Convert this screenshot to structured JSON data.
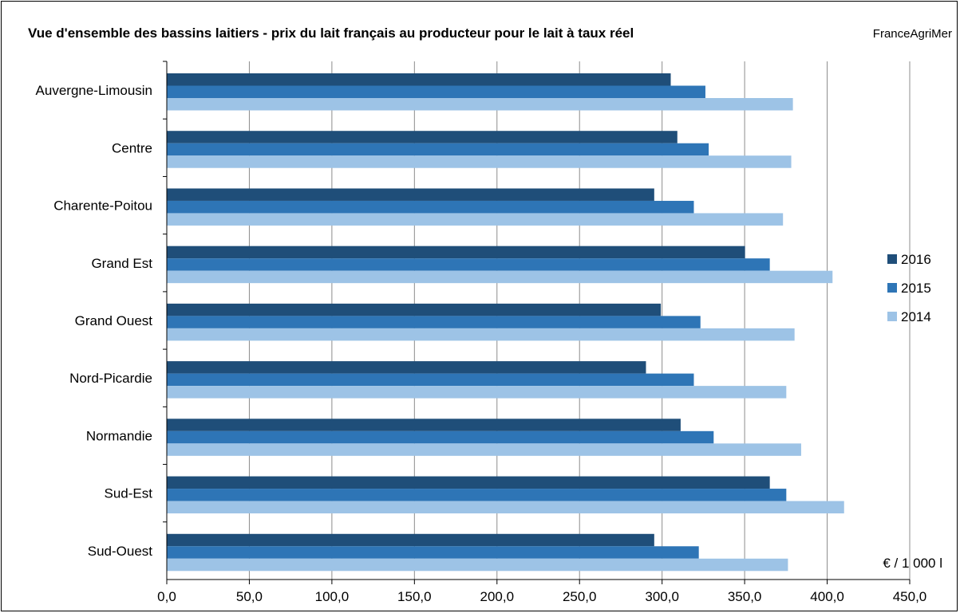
{
  "header": {
    "title": "Vue d'ensemble des bassins laitiers - prix du lait français au producteur pour le lait à taux réel",
    "source": "FranceAgriMer"
  },
  "chart_data": {
    "type": "bar",
    "orientation": "horizontal",
    "title": "Vue d'ensemble des bassins laitiers - prix du lait français au producteur pour le lait à taux réel",
    "unit_label": "€ / 1 000 l",
    "categories": [
      "Auvergne-Limousin",
      "Centre",
      "Charente-Poitou",
      "Grand Est",
      "Grand Ouest",
      "Nord-Picardie",
      "Normandie",
      "Sud-Est",
      "Sud-Ouest"
    ],
    "series": [
      {
        "name": "2016",
        "color": "#1f4e79",
        "values": [
          305,
          309,
          295,
          350,
          299,
          290,
          311,
          365,
          295
        ]
      },
      {
        "name": "2015",
        "color": "#2e75b6",
        "values": [
          326,
          328,
          319,
          365,
          323,
          319,
          331,
          375,
          322
        ]
      },
      {
        "name": "2014",
        "color": "#9dc3e6",
        "values": [
          379,
          378,
          373,
          403,
          380,
          375,
          384,
          410,
          376
        ]
      }
    ],
    "xlim": [
      0,
      450
    ],
    "x_ticks": [
      "0,0",
      "50,0",
      "100,0",
      "150,0",
      "200,0",
      "250,0",
      "300,0",
      "350,0",
      "400,0",
      "450,0"
    ],
    "grid": true,
    "legend": "right"
  }
}
